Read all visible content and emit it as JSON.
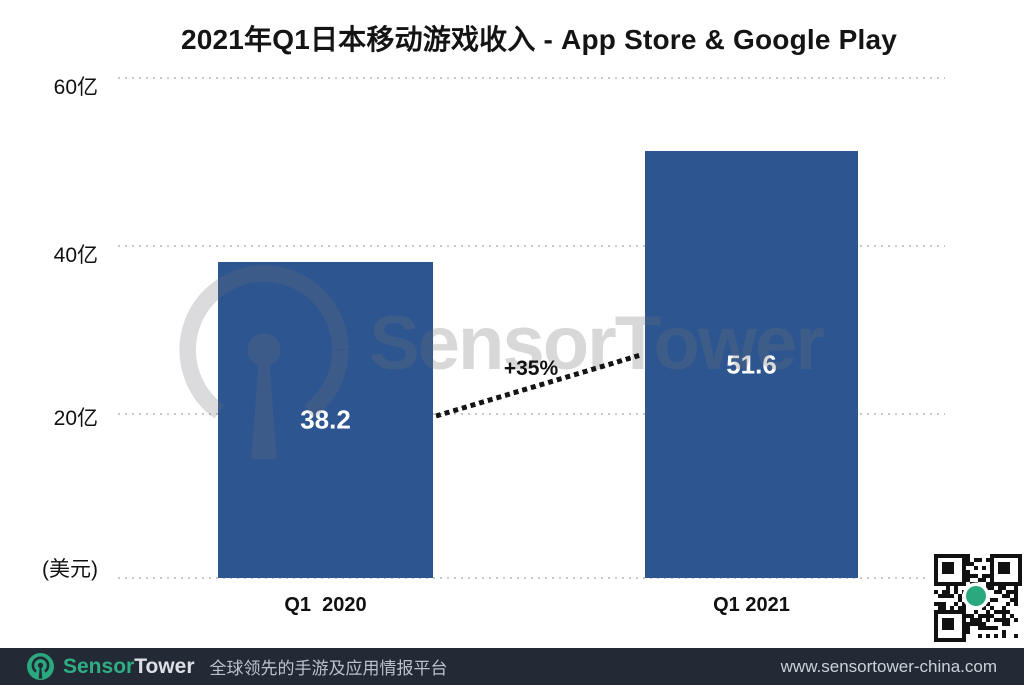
{
  "title": "2021年Q1日本移动游戏收入 - App Store & Google Play",
  "chart_data": {
    "type": "bar",
    "title": "2021年Q1日本移动游戏收入 - App Store & Google Play",
    "categories": [
      "Q1  2020",
      "Q1 2021"
    ],
    "values": [
      38.2,
      51.6
    ],
    "data_labels": [
      "38.2",
      "51.6"
    ],
    "y_ticks": [
      "60亿",
      "40亿",
      "20亿"
    ],
    "y_unit_label": "(美元)",
    "ylim": [
      0,
      60
    ],
    "grid": true,
    "bar_color": "#2d5590",
    "growth_annotation": "+35%",
    "annotation_style": "dotted-line-between-bars"
  },
  "watermark": {
    "text": "SensorTower",
    "logo": "sensortower-antenna-logo"
  },
  "qr": {
    "name": "qr-code",
    "center_dot_color": "#2aa87e"
  },
  "footer": {
    "brand_sensor": "Sensor",
    "brand_tower": "Tower",
    "tagline": "全球领先的手游及应用情报平台",
    "website": "www.sensortower-china.com",
    "background_color": "#222a35",
    "accent_color": "#2fae84"
  }
}
